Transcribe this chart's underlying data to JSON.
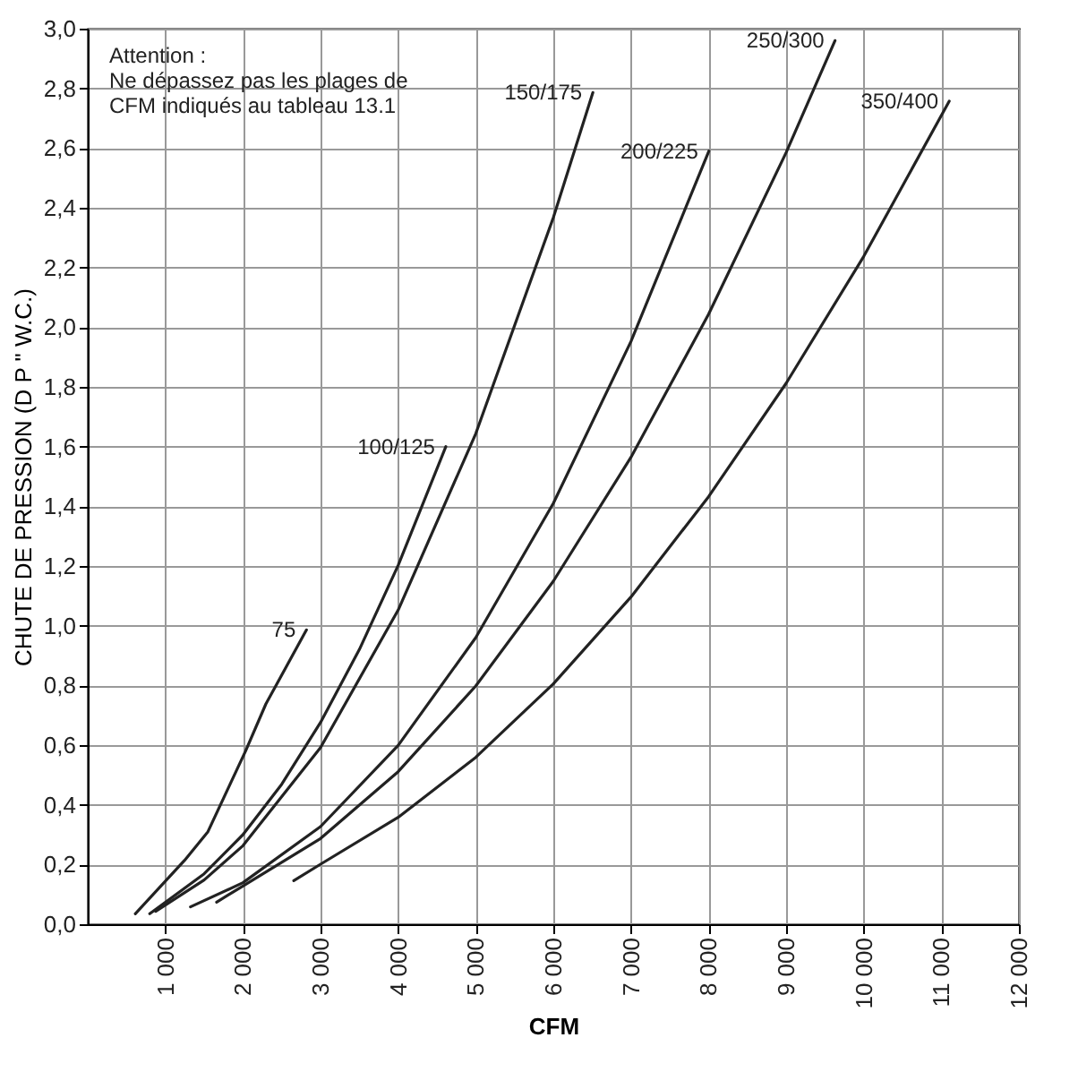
{
  "chart_data": {
    "type": "line",
    "xlabel": "CFM",
    "ylabel": "CHUTE DE PRESSION (D P \" W.C.)",
    "xlim": [
      0,
      12000
    ],
    "ylim": [
      0,
      3.0
    ],
    "xticks": [
      {
        "value": 1000,
        "label": "1 000"
      },
      {
        "value": 2000,
        "label": "2 000"
      },
      {
        "value": 3000,
        "label": "3 000"
      },
      {
        "value": 4000,
        "label": "4 000"
      },
      {
        "value": 5000,
        "label": "5 000"
      },
      {
        "value": 6000,
        "label": "6 000"
      },
      {
        "value": 7000,
        "label": "7 000"
      },
      {
        "value": 8000,
        "label": "8 000"
      },
      {
        "value": 9000,
        "label": "9 000"
      },
      {
        "value": 10000,
        "label": "10 000"
      },
      {
        "value": 11000,
        "label": "11 000"
      },
      {
        "value": 12000,
        "label": "12 000"
      }
    ],
    "yticks": [
      {
        "value": 0,
        "label": "0,0"
      },
      {
        "value": 0.2,
        "label": "0,2"
      },
      {
        "value": 0.4,
        "label": "0,4"
      },
      {
        "value": 0.6,
        "label": "0,6"
      },
      {
        "value": 0.8,
        "label": "0,8"
      },
      {
        "value": 1.0,
        "label": "1,0"
      },
      {
        "value": 1.2,
        "label": "1,2"
      },
      {
        "value": 1.4,
        "label": "1,4"
      },
      {
        "value": 1.6,
        "label": "1,6"
      },
      {
        "value": 1.8,
        "label": "1,8"
      },
      {
        "value": 2.0,
        "label": "2,0"
      },
      {
        "value": 2.2,
        "label": "2,2"
      },
      {
        "value": 2.4,
        "label": "2,4"
      },
      {
        "value": 2.6,
        "label": "2,6"
      },
      {
        "value": 2.8,
        "label": "2,8"
      },
      {
        "value": 3.0,
        "label": "3,0"
      }
    ],
    "grid": true,
    "marker": "none",
    "line_style": "solid",
    "series": [
      {
        "name": "75",
        "color": "#222222",
        "x": [
          613,
          1248,
          1549,
          2034,
          2296,
          2819
        ],
        "values": [
          0.035,
          0.214,
          0.31,
          0.58,
          0.738,
          0.986
        ]
      },
      {
        "name": "100/125",
        "color": "#222222",
        "x": [
          799,
          1500,
          2000,
          2500,
          3000,
          3500,
          4000,
          4615
        ],
        "values": [
          0.035,
          0.169,
          0.3,
          0.469,
          0.676,
          0.92,
          1.202,
          1.6
        ]
      },
      {
        "name": "150/175",
        "color": "#222222",
        "x": [
          875,
          1500,
          2000,
          3000,
          4000,
          5000,
          6000,
          6510
        ],
        "values": [
          0.043,
          0.148,
          0.263,
          0.592,
          1.052,
          1.643,
          2.367,
          2.786
        ]
      },
      {
        "name": "200/225",
        "color": "#222222",
        "x": [
          1324,
          2000,
          3000,
          4000,
          5000,
          6000,
          7000,
          8005
        ],
        "values": [
          0.058,
          0.139,
          0.327,
          0.599,
          0.96,
          1.41,
          1.952,
          2.59
        ]
      },
      {
        "name": "250/300",
        "color": "#222222",
        "x": [
          1661,
          2000,
          3000,
          4000,
          5000,
          6000,
          7000,
          8000,
          9000,
          9630
        ],
        "values": [
          0.074,
          0.128,
          0.287,
          0.511,
          0.798,
          1.149,
          1.564,
          2.043,
          2.585,
          2.96
        ]
      },
      {
        "name": "350/400",
        "color": "#222222",
        "x": [
          2655,
          3000,
          4000,
          5000,
          6000,
          7000,
          8000,
          9000,
          10000,
          11102
        ],
        "values": [
          0.146,
          0.201,
          0.358,
          0.559,
          0.805,
          1.096,
          1.432,
          1.812,
          2.237,
          2.757
        ]
      }
    ],
    "annotations": [
      "Attention :\nNe dépassez pas les plages de\nCFM indiqués au tableau 13.1"
    ]
  }
}
